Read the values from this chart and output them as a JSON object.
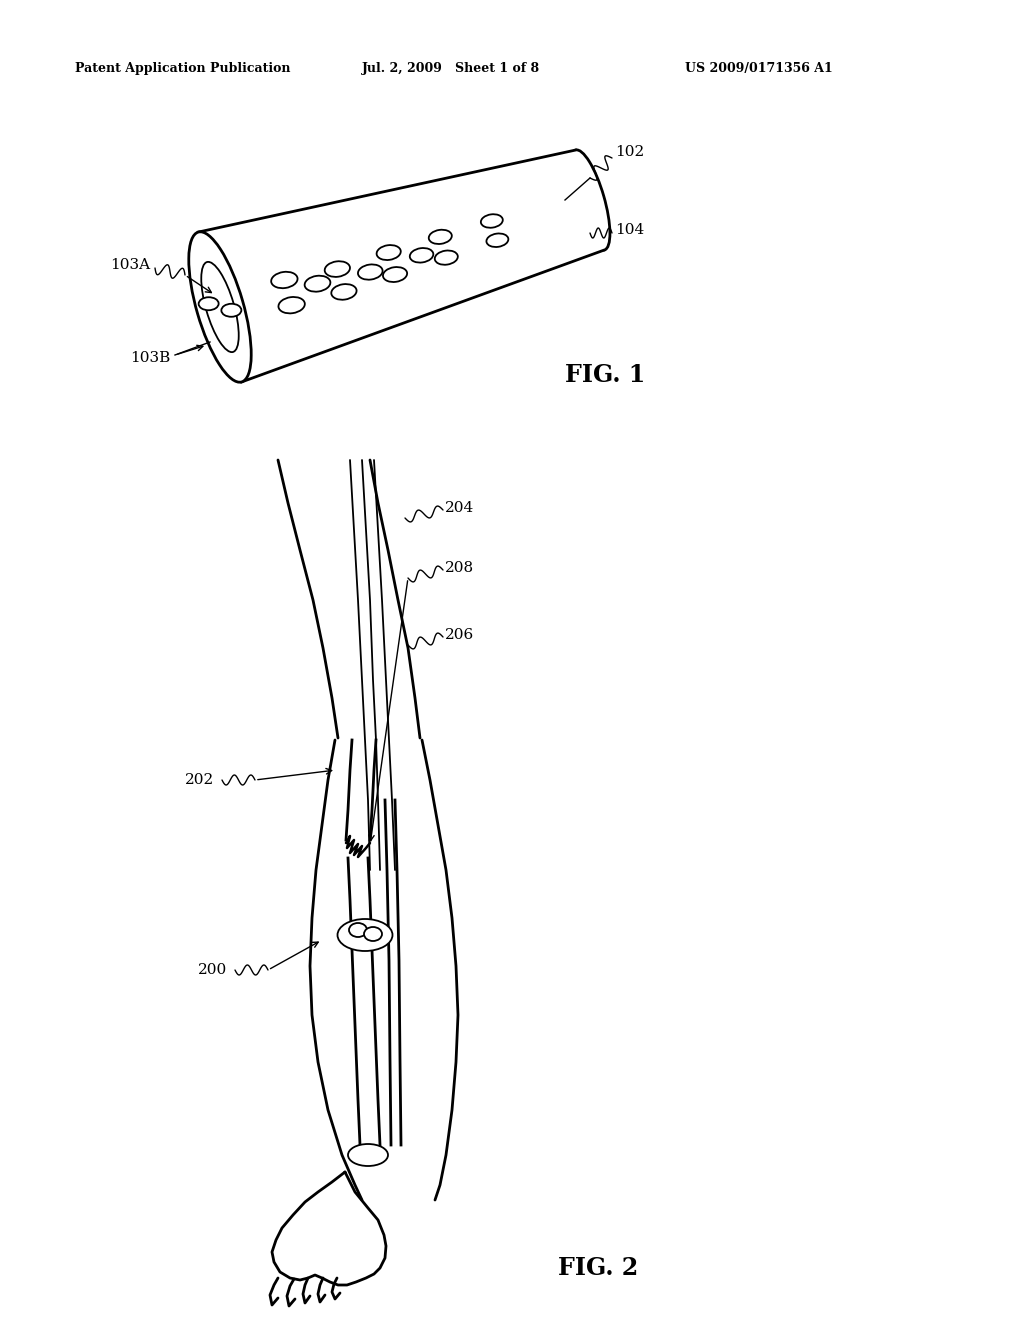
{
  "bg_color": "#ffffff",
  "header_left": "Patent Application Publication",
  "header_mid": "Jul. 2, 2009   Sheet 1 of 8",
  "header_right": "US 2009/0171356 A1",
  "fig1_label": "FIG. 1",
  "fig2_label": "FIG. 2",
  "lw_main": 2.0,
  "lw_thin": 1.3,
  "lw_label": 1.0
}
